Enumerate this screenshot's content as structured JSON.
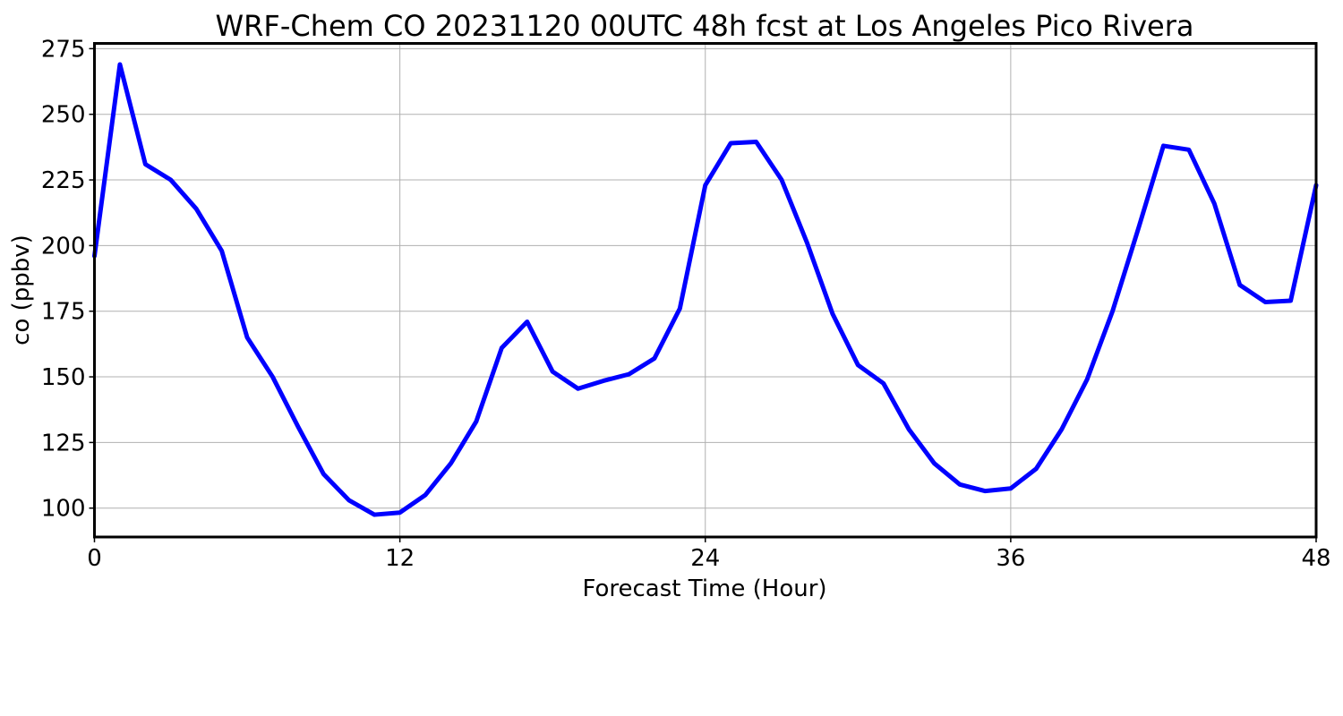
{
  "chart_data": {
    "type": "line",
    "title": "WRF-Chem CO  20231120 00UTC 48h fcst at Los Angeles Pico Rivera",
    "xlabel": "Forecast Time (Hour)",
    "ylabel": "co  (ppbv)",
    "xlim": [
      0,
      48
    ],
    "ylim": [
      89,
      277
    ],
    "xticks": [
      0,
      12,
      24,
      36,
      48
    ],
    "xtick_labels": [
      "0",
      "12",
      "24",
      "36",
      "48"
    ],
    "yticks": [
      100,
      125,
      150,
      175,
      200,
      225,
      250,
      275
    ],
    "ytick_labels": [
      "100",
      "125",
      "150",
      "175",
      "200",
      "225",
      "250",
      "275"
    ],
    "grid": true,
    "series": [
      {
        "color": "#0000ff",
        "x": [
          0,
          1,
          2,
          3,
          4,
          5,
          6,
          7,
          8,
          9,
          10,
          11,
          12,
          13,
          14,
          15,
          16,
          17,
          18,
          19,
          20,
          21,
          22,
          23,
          24,
          25,
          26,
          27,
          28,
          29,
          30,
          31,
          32,
          33,
          34,
          35,
          36,
          37,
          38,
          39,
          40,
          41,
          42,
          43,
          44,
          45,
          46,
          47,
          48
        ],
        "values": [
          196,
          269,
          231,
          225,
          214,
          198,
          165,
          150,
          131,
          113,
          103,
          97.5,
          98.3,
          105,
          117,
          133,
          161,
          171,
          152,
          145.5,
          148.5,
          151,
          157,
          176,
          223,
          239,
          239.5,
          225,
          201,
          174,
          154.5,
          147.5,
          130,
          117,
          109,
          106.5,
          107.5,
          115,
          130,
          149,
          175,
          206,
          238,
          236.5,
          216,
          185,
          178.5,
          179,
          223
        ]
      }
    ]
  }
}
